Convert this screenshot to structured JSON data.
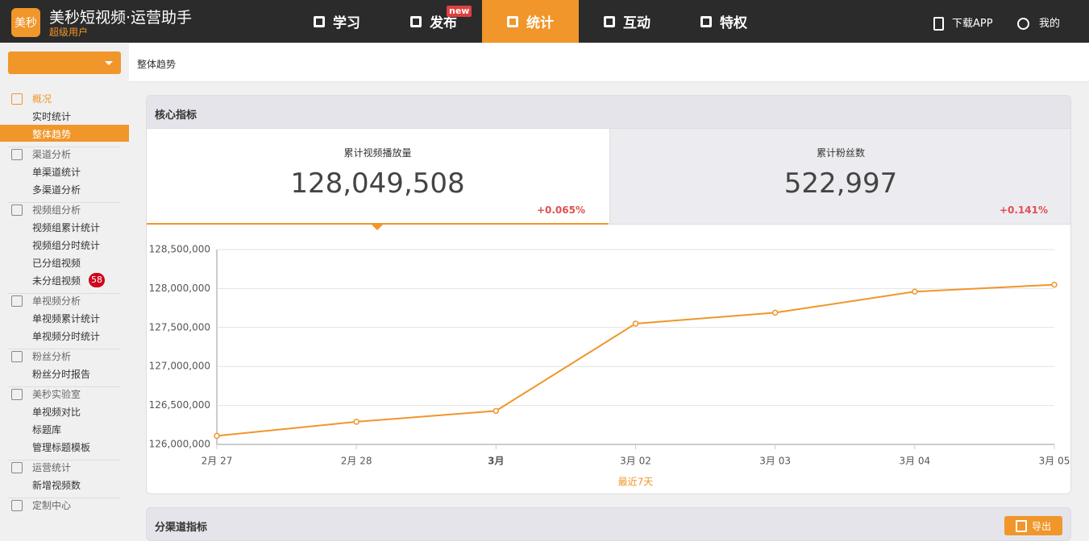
{
  "header": {
    "logo": "美秒",
    "title": "美秒短视频·运营助手",
    "subtitle": "超级用户",
    "nav": [
      {
        "label": "学习"
      },
      {
        "label": "发布",
        "badge": "new"
      },
      {
        "label": "统计"
      },
      {
        "label": "互动"
      },
      {
        "label": "特权"
      }
    ],
    "right": [
      "下载APP",
      "我的"
    ]
  },
  "sidebar": {
    "groups": [
      {
        "title": "概况",
        "items": [
          {
            "label": "实时统计"
          },
          {
            "label": "整体趋势"
          }
        ]
      },
      {
        "title": "渠道分析",
        "items": [
          {
            "label": "单渠道统计"
          },
          {
            "label": "多渠道分析"
          }
        ]
      },
      {
        "title": "视频组分析",
        "items": [
          {
            "label": "视频组累计统计"
          },
          {
            "label": "视频组分时统计"
          },
          {
            "label": "已分组视频"
          },
          {
            "label": "未分组视频",
            "badge": 58
          }
        ]
      },
      {
        "title": "单视频分析",
        "items": [
          {
            "label": "单视频累计统计"
          },
          {
            "label": "单视频分时统计"
          }
        ]
      },
      {
        "title": "粉丝分析",
        "items": [
          {
            "label": "粉丝分时报告"
          }
        ]
      },
      {
        "title": "美秒实验室",
        "items": [
          {
            "label": "单视频对比"
          },
          {
            "label": "标题库"
          },
          {
            "label": "管理标题模板"
          }
        ]
      },
      {
        "title": "运营统计",
        "items": [
          {
            "label": "新增视频数"
          }
        ]
      },
      {
        "title": "定制中心",
        "items": []
      }
    ]
  },
  "breadcrumb": "整体趋势",
  "panel": {
    "title": "核心指标",
    "cards": [
      {
        "label": "累计视频播放量",
        "value": "128,049,508",
        "change": "+0.065%"
      },
      {
        "label": "累计粉丝数",
        "value": "522,997",
        "change": "+0.141%"
      }
    ]
  },
  "chart_data": {
    "type": "line",
    "x_label": "最近7天",
    "categories": [
      "2月 27",
      "2月 28",
      "3月",
      "3月 02",
      "3月 03",
      "3月 04",
      "3月 05"
    ],
    "series": [
      {
        "color": "#f0962a",
        "values": [
          126110000,
          126290000,
          126430000,
          127550000,
          127690000,
          127960000,
          128049508
        ]
      }
    ],
    "ylim": [
      126000000,
      128500000
    ],
    "yticks": [
      {
        "value": 126000000,
        "label": "126,000,000"
      },
      {
        "value": 126500000,
        "label": "126,500,000"
      },
      {
        "value": 127000000,
        "label": "127,000,000"
      },
      {
        "value": 127500000,
        "label": "127,500,000"
      },
      {
        "value": 128000000,
        "label": "128,000,000"
      },
      {
        "value": 128500000,
        "label": "128,500,000"
      }
    ],
    "grid": true
  },
  "section2": {
    "title": "分渠道指标",
    "button": "导出"
  }
}
